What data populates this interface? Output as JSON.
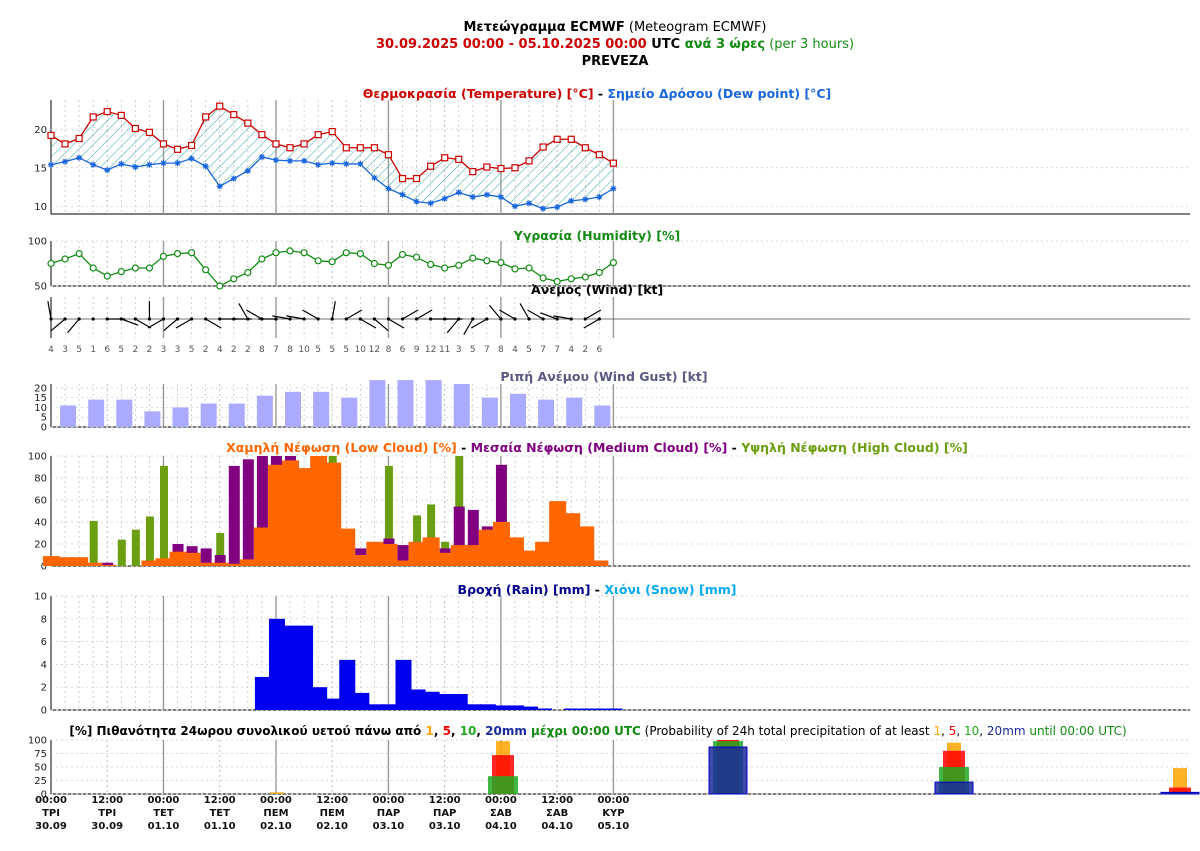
{
  "header": {
    "line1_bold": "Μετεώγραμμα ECMWF",
    "line1_normal": " (Meteogram ECMWF)",
    "line2_range": "30.09.2025 00:00 - 05.10.2025 00:00",
    "line2_utc": " UTC ",
    "line2_every": "ανά 3 ώρες",
    "line2_per": " (per 3 hours)",
    "location": "PREVEZA"
  },
  "titles": {
    "temp_a": "Θερμοκρασία (Temperature) [°C]",
    "temp_sep": " - ",
    "temp_b": "Σημείο Δρόσου (Dew point) [°C]",
    "humidity": "Υγρασία (Humidity) [%]",
    "wind": "Άνεμος (Wind) [kt]",
    "gust": "Ριπή Ανέμου (Wind Gust) [kt]",
    "cloud_low": "Χαμηλή Νέφωση (Low Cloud) [%]",
    "cloud_mid": "Μεσαία Νέφωση (Medium Cloud) [%]",
    "cloud_high": "Υψηλή Νέφωση (High Cloud) [%]",
    "cloud_sep": " - ",
    "rain": "Βροχή (Rain) [mm]",
    "rain_sep": " - ",
    "snow": "Χιόνι (Snow) [mm]",
    "prob_a": "[%] Πιθανότητα 24ωρου συνολικού υετού πάνω από ",
    "prob_t1": "1",
    "prob_c1": ", ",
    "prob_t5": "5",
    "prob_c2": ", ",
    "prob_t10": "10",
    "prob_c3": ", ",
    "prob_t20": "20mm",
    "prob_b": " μέχρι 00:00 UTC",
    "prob_c": " (Probability of 24h total precipitation of at least ",
    "prob_e1": "1",
    "prob_e2": ", ",
    "prob_e5": "5",
    "prob_e3": ", ",
    "prob_e10": "10",
    "prob_e4": ", ",
    "prob_e20": "20mm",
    "prob_d": " until 00:00 UTC)"
  },
  "colors": {
    "temp": "#cc0000",
    "dew": "#1a66dd",
    "humidity": "#138a13",
    "gust": "#aaaaff",
    "low": "#ff6600",
    "mid": "#800080",
    "high": "#6b9e10",
    "rain": "#0000ee",
    "snow": "#00aaee",
    "p1": "#ffa500",
    "p5": "#ff0000",
    "p10": "#22aa22",
    "p20": "#1a2a9a"
  },
  "chart_data": {
    "type": "meteogram",
    "bottom_axis": [
      {
        "time": "00:00",
        "day": "ΤΡΙ",
        "date": "30.09"
      },
      {
        "time": "12:00",
        "day": "ΤΡΙ",
        "date": "30.09"
      },
      {
        "time": "00:00",
        "day": "ΤΕΤ",
        "date": "01.10"
      },
      {
        "time": "12:00",
        "day": "ΤΕΤ",
        "date": "01.10"
      },
      {
        "time": "00:00",
        "day": "ΠΕΜ",
        "date": "02.10"
      },
      {
        "time": "12:00",
        "day": "ΠΕΜ",
        "date": "02.10"
      },
      {
        "time": "00:00",
        "day": "ΠΑΡ",
        "date": "03.10"
      },
      {
        "time": "12:00",
        "day": "ΠΑΡ",
        "date": "03.10"
      },
      {
        "time": "00:00",
        "day": "ΣΑΒ",
        "date": "04.10"
      },
      {
        "time": "12:00",
        "day": "ΣΑΒ",
        "date": "04.10"
      },
      {
        "time": "00:00",
        "day": "ΚΥΡ",
        "date": "05.10"
      }
    ],
    "temperature": [
      19.2,
      18.1,
      18.8,
      21.6,
      22.3,
      21.8,
      20.1,
      19.6,
      18.1,
      17.4,
      17.9,
      21.6,
      23.0,
      21.9,
      20.8,
      19.3,
      18.1,
      17.6,
      18.1,
      19.3,
      19.7,
      17.6,
      17.6,
      17.6,
      16.7,
      13.6,
      13.6,
      15.2,
      16.3,
      16.1,
      14.5,
      15.1,
      14.9,
      15.0,
      15.9,
      17.7,
      18.7,
      18.7,
      17.6,
      16.7,
      15.6
    ],
    "dew_point": [
      15.4,
      15.8,
      16.3,
      15.4,
      14.7,
      15.5,
      15.1,
      15.4,
      15.6,
      15.6,
      16.2,
      15.2,
      12.6,
      13.6,
      14.6,
      16.4,
      16.0,
      15.9,
      15.9,
      15.4,
      15.6,
      15.5,
      15.5,
      13.7,
      12.3,
      11.5,
      10.6,
      10.4,
      11.0,
      11.8,
      11.2,
      11.5,
      11.2,
      10.0,
      10.4,
      9.7,
      9.9,
      10.7,
      10.9,
      11.2,
      12.3
    ],
    "temp_axis": {
      "ylim": [
        9,
        23.8
      ],
      "ticks": [
        10,
        15,
        20
      ]
    },
    "humidity": [
      75,
      80,
      86,
      70,
      61,
      66,
      70,
      70,
      83,
      86,
      87,
      68,
      50,
      58,
      65,
      80,
      87,
      89,
      87,
      78,
      77,
      87,
      86,
      75,
      73,
      85,
      82,
      74,
      70,
      73,
      81,
      78,
      76,
      69,
      70,
      59,
      55,
      58,
      60,
      65,
      76
    ],
    "humidity_axis": {
      "ylim": [
        50,
        100
      ],
      "ticks": [
        50,
        100
      ]
    },
    "wind_speed": [
      4,
      3,
      5,
      1,
      6,
      5,
      2,
      2,
      3,
      3,
      5,
      2,
      4,
      2,
      2,
      8,
      7,
      8,
      10,
      5,
      5,
      5,
      10,
      12,
      8,
      6,
      9,
      12,
      11,
      3,
      5,
      7,
      8,
      4,
      5,
      7,
      7,
      4,
      2,
      6
    ],
    "wind_dir_deg": [
      350,
      230,
      220,
      0,
      90,
      110,
      120,
      0,
      240,
      230,
      240,
      120,
      90,
      90,
      330,
      300,
      270,
      280,
      280,
      300,
      10,
      60,
      120,
      130,
      120,
      60,
      60,
      90,
      90,
      220,
      210,
      240,
      320,
      300,
      330,
      300,
      290,
      280,
      60,
      240
    ],
    "wind_gust": [
      11,
      14,
      14,
      8,
      10,
      12,
      12,
      16,
      18,
      18,
      15,
      24,
      24,
      24,
      22,
      15,
      17,
      14,
      15,
      11
    ],
    "gust_axis": {
      "ylim": [
        0,
        22
      ],
      "ticks": [
        0,
        5,
        10,
        15,
        20
      ]
    },
    "low_cloud": [
      9,
      8,
      8,
      3,
      1,
      0,
      0,
      5,
      7,
      13,
      12,
      3,
      3,
      2,
      6,
      35,
      92,
      96,
      89,
      100,
      94,
      34,
      10,
      22,
      20,
      5,
      22,
      26,
      12,
      19,
      19,
      33,
      40,
      26,
      14,
      22,
      59,
      48,
      36,
      5
    ],
    "medium_cloud": [
      0,
      0,
      0,
      0,
      3,
      0,
      0,
      0,
      0,
      20,
      18,
      16,
      10,
      91,
      97,
      100,
      100,
      100,
      0,
      0,
      0,
      0,
      16,
      0,
      25,
      19,
      0,
      0,
      16,
      54,
      51,
      36,
      92,
      0,
      0,
      0,
      0,
      0,
      0,
      0
    ],
    "high_cloud": [
      0,
      0,
      0,
      41,
      0,
      24,
      33,
      45,
      91,
      0,
      0,
      0,
      30,
      0,
      0,
      0,
      0,
      0,
      0,
      0,
      100,
      0,
      0,
      0,
      91,
      0,
      46,
      56,
      22,
      100,
      0,
      0,
      0,
      0,
      0,
      0,
      0,
      0,
      0,
      0
    ],
    "cloud_axis": {
      "ylim": [
        0,
        100
      ],
      "ticks": [
        0,
        20,
        40,
        60,
        80,
        100
      ]
    },
    "rain": [
      0,
      0,
      0,
      0,
      0,
      0,
      0,
      0,
      0,
      0,
      0,
      0,
      0,
      0,
      0,
      2.9,
      8.0,
      7.4,
      7.4,
      2.0,
      1.0,
      4.4,
      1.5,
      0.5,
      0.5,
      4.4,
      1.8,
      1.6,
      1.4,
      1.4,
      0.5,
      0.5,
      0.4,
      0.4,
      0.3,
      0.1,
      0,
      0.05,
      0.05,
      0.05,
      0.05
    ],
    "snow": [],
    "rain_axis": {
      "ylim": [
        0,
        10
      ],
      "ticks": [
        0,
        2,
        4,
        6,
        8,
        10
      ]
    },
    "prob_24h": [
      {
        "day": "01.10",
        "p1": 3,
        "p5": 0,
        "p10": 0,
        "p20": 0
      },
      {
        "day": "02.10",
        "p1": 98,
        "p5": 72,
        "p10": 33,
        "p20": 0
      },
      {
        "day": "03.10",
        "p1": 100,
        "p5": 100,
        "p10": 98,
        "p20": 87
      },
      {
        "day": "04.10",
        "p1": 95,
        "p5": 80,
        "p10": 50,
        "p20": 22
      },
      {
        "day": "05.10",
        "p1": 48,
        "p5": 12,
        "p10": 2,
        "p20": 3
      }
    ],
    "prob_axis": {
      "ylim": [
        0,
        100
      ],
      "ticks": [
        0,
        25,
        50,
        75,
        100
      ]
    }
  }
}
